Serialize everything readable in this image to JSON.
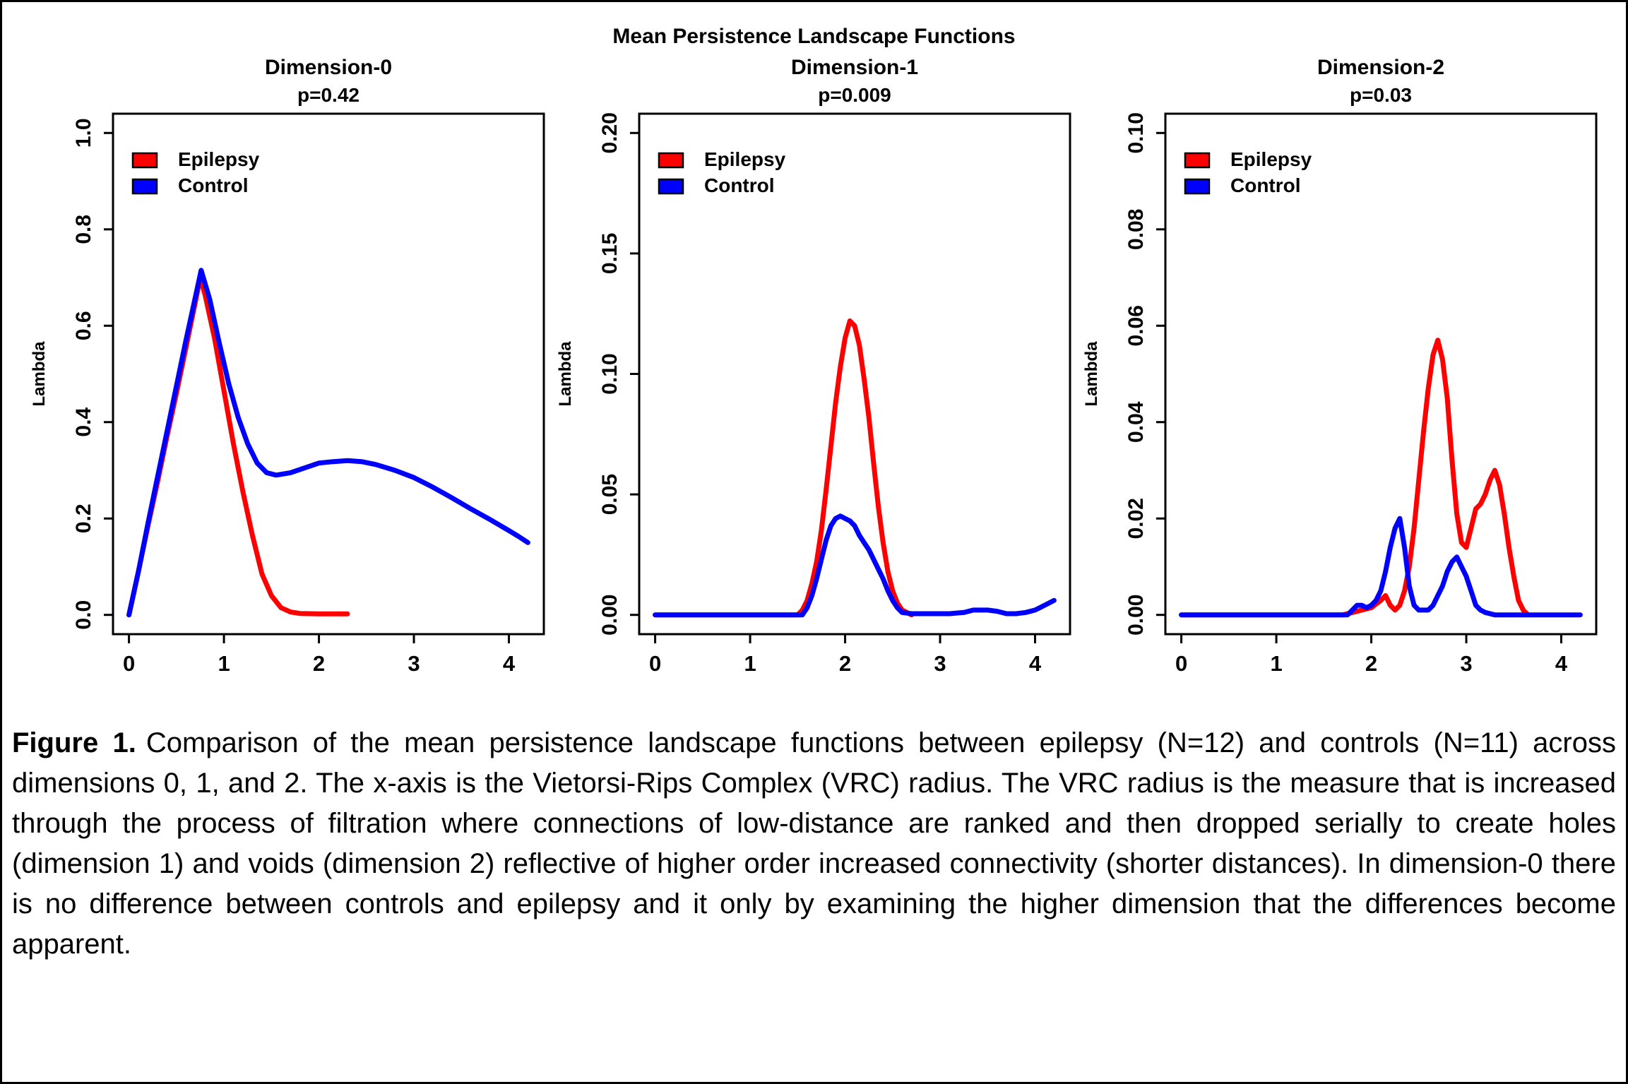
{
  "figure": {
    "main_title": "Mean Persistence Landscape Functions",
    "caption_label": "Figure 1.",
    "caption_text": "Comparison of the mean persistence landscape functions between epilepsy (N=12) and controls (N=11) across dimensions 0, 1, and 2. The x-axis is the Vietorsi-Rips Complex (VRC) radius. The VRC radius is the measure that is increased through the process of filtration where connections of low-distance are ranked and then dropped serially to create holes (dimension 1) and voids (dimension 2) reflective of higher order increased connectivity (shorter distances). In dimension-0 there is no difference between controls and epilepsy and it only by examining the higher dimension that the differences become apparent."
  },
  "colors": {
    "epilepsy": "#FF0000",
    "control": "#0000FF",
    "axis": "#000000",
    "background": "#FFFFFF"
  },
  "legend": {
    "items": [
      "Epilepsy",
      "Control"
    ]
  },
  "chart_data": [
    {
      "type": "line",
      "title": "Dimension-0",
      "p_label": "p=0.42",
      "p_value": 0.42,
      "xlabel": "",
      "ylabel": "Lambda",
      "xlim": [
        0,
        4.2
      ],
      "ylim": [
        0,
        1.0
      ],
      "xticks": [
        "0",
        "1",
        "2",
        "3",
        "4"
      ],
      "yticks": [
        "0.0",
        "0.2",
        "0.4",
        "0.6",
        "0.8",
        "1.0"
      ],
      "grid": false,
      "legend_position": "top-left",
      "series": [
        {
          "name": "Epilepsy",
          "color": "#FF0000",
          "points": [
            [
              0,
              0
            ],
            [
              0.1,
              0.09
            ],
            [
              0.2,
              0.185
            ],
            [
              0.3,
              0.275
            ],
            [
              0.4,
              0.37
            ],
            [
              0.5,
              0.46
            ],
            [
              0.6,
              0.555
            ],
            [
              0.7,
              0.65
            ],
            [
              0.75,
              0.7
            ],
            [
              0.8,
              0.665
            ],
            [
              0.9,
              0.575
            ],
            [
              1.0,
              0.465
            ],
            [
              1.1,
              0.355
            ],
            [
              1.2,
              0.255
            ],
            [
              1.3,
              0.165
            ],
            [
              1.4,
              0.085
            ],
            [
              1.5,
              0.04
            ],
            [
              1.6,
              0.015
            ],
            [
              1.7,
              0.006
            ],
            [
              1.8,
              0.003
            ],
            [
              2.0,
              0.002
            ],
            [
              2.3,
              0.002
            ]
          ]
        },
        {
          "name": "Control",
          "color": "#0000FF",
          "points": [
            [
              0,
              0
            ],
            [
              0.1,
              0.09
            ],
            [
              0.2,
              0.19
            ],
            [
              0.3,
              0.285
            ],
            [
              0.4,
              0.38
            ],
            [
              0.5,
              0.475
            ],
            [
              0.6,
              0.57
            ],
            [
              0.7,
              0.66
            ],
            [
              0.76,
              0.715
            ],
            [
              0.85,
              0.655
            ],
            [
              0.95,
              0.565
            ],
            [
              1.05,
              0.48
            ],
            [
              1.15,
              0.41
            ],
            [
              1.25,
              0.355
            ],
            [
              1.35,
              0.315
            ],
            [
              1.45,
              0.295
            ],
            [
              1.55,
              0.29
            ],
            [
              1.7,
              0.295
            ],
            [
              1.85,
              0.305
            ],
            [
              2.0,
              0.315
            ],
            [
              2.15,
              0.318
            ],
            [
              2.3,
              0.32
            ],
            [
              2.45,
              0.318
            ],
            [
              2.6,
              0.312
            ],
            [
              2.8,
              0.3
            ],
            [
              3.0,
              0.285
            ],
            [
              3.2,
              0.265
            ],
            [
              3.4,
              0.243
            ],
            [
              3.6,
              0.22
            ],
            [
              3.8,
              0.198
            ],
            [
              4.0,
              0.175
            ],
            [
              4.1,
              0.163
            ],
            [
              4.2,
              0.15
            ]
          ]
        }
      ]
    },
    {
      "type": "line",
      "title": "Dimension-1",
      "p_label": "p=0.009",
      "p_value": 0.009,
      "xlabel": "",
      "ylabel": "Lambda",
      "xlim": [
        0,
        4.2
      ],
      "ylim": [
        0,
        0.2
      ],
      "xticks": [
        "0",
        "1",
        "2",
        "3",
        "4"
      ],
      "yticks": [
        "0.00",
        "0.05",
        "0.10",
        "0.15",
        "0.20"
      ],
      "grid": false,
      "legend_position": "top-left",
      "series": [
        {
          "name": "Epilepsy",
          "color": "#FF0000",
          "points": [
            [
              0,
              0
            ],
            [
              1.5,
              0
            ],
            [
              1.55,
              0.002
            ],
            [
              1.6,
              0.006
            ],
            [
              1.65,
              0.013
            ],
            [
              1.7,
              0.022
            ],
            [
              1.75,
              0.035
            ],
            [
              1.8,
              0.052
            ],
            [
              1.85,
              0.07
            ],
            [
              1.9,
              0.088
            ],
            [
              1.95,
              0.103
            ],
            [
              2.0,
              0.115
            ],
            [
              2.05,
              0.122
            ],
            [
              2.1,
              0.12
            ],
            [
              2.15,
              0.112
            ],
            [
              2.2,
              0.098
            ],
            [
              2.25,
              0.082
            ],
            [
              2.3,
              0.063
            ],
            [
              2.35,
              0.045
            ],
            [
              2.4,
              0.03
            ],
            [
              2.45,
              0.018
            ],
            [
              2.5,
              0.01
            ],
            [
              2.55,
              0.005
            ],
            [
              2.6,
              0.002
            ],
            [
              2.65,
              0.001
            ],
            [
              2.7,
              0
            ]
          ]
        },
        {
          "name": "Control",
          "color": "#0000FF",
          "points": [
            [
              0,
              0
            ],
            [
              1.55,
              0
            ],
            [
              1.6,
              0.003
            ],
            [
              1.65,
              0.008
            ],
            [
              1.7,
              0.015
            ],
            [
              1.75,
              0.023
            ],
            [
              1.8,
              0.031
            ],
            [
              1.85,
              0.037
            ],
            [
              1.9,
              0.04
            ],
            [
              1.95,
              0.041
            ],
            [
              2.0,
              0.04
            ],
            [
              2.05,
              0.039
            ],
            [
              2.1,
              0.037
            ],
            [
              2.15,
              0.033
            ],
            [
              2.2,
              0.03
            ],
            [
              2.25,
              0.027
            ],
            [
              2.3,
              0.023
            ],
            [
              2.35,
              0.019
            ],
            [
              2.4,
              0.015
            ],
            [
              2.45,
              0.01
            ],
            [
              2.5,
              0.006
            ],
            [
              2.55,
              0.003
            ],
            [
              2.6,
              0.001
            ],
            [
              2.7,
              0.0005
            ],
            [
              2.9,
              0.0005
            ],
            [
              3.1,
              0.0005
            ],
            [
              3.25,
              0.001
            ],
            [
              3.35,
              0.002
            ],
            [
              3.5,
              0.002
            ],
            [
              3.6,
              0.0015
            ],
            [
              3.7,
              0.0005
            ],
            [
              3.8,
              0.0005
            ],
            [
              3.9,
              0.001
            ],
            [
              4.0,
              0.002
            ],
            [
              4.1,
              0.004
            ],
            [
              4.2,
              0.006
            ]
          ]
        }
      ]
    },
    {
      "type": "line",
      "title": "Dimension-2",
      "p_label": "p=0.03",
      "p_value": 0.03,
      "xlabel": "",
      "ylabel": "Lambda",
      "xlim": [
        0,
        4.2
      ],
      "ylim": [
        0,
        0.1
      ],
      "xticks": [
        "0",
        "1",
        "2",
        "3",
        "4"
      ],
      "yticks": [
        "0.00",
        "0.02",
        "0.04",
        "0.06",
        "0.08",
        "0.10"
      ],
      "grid": false,
      "legend_position": "top-left",
      "series": [
        {
          "name": "Epilepsy",
          "color": "#FF0000",
          "points": [
            [
              0,
              0
            ],
            [
              1.7,
              0
            ],
            [
              1.8,
              0.0005
            ],
            [
              1.9,
              0.001
            ],
            [
              2.0,
              0.0015
            ],
            [
              2.1,
              0.003
            ],
            [
              2.15,
              0.004
            ],
            [
              2.2,
              0.002
            ],
            [
              2.25,
              0.001
            ],
            [
              2.3,
              0.002
            ],
            [
              2.35,
              0.005
            ],
            [
              2.4,
              0.01
            ],
            [
              2.45,
              0.018
            ],
            [
              2.5,
              0.028
            ],
            [
              2.55,
              0.038
            ],
            [
              2.6,
              0.047
            ],
            [
              2.65,
              0.054
            ],
            [
              2.7,
              0.057
            ],
            [
              2.75,
              0.053
            ],
            [
              2.8,
              0.045
            ],
            [
              2.85,
              0.032
            ],
            [
              2.9,
              0.021
            ],
            [
              2.95,
              0.015
            ],
            [
              3.0,
              0.014
            ],
            [
              3.05,
              0.018
            ],
            [
              3.1,
              0.022
            ],
            [
              3.15,
              0.023
            ],
            [
              3.2,
              0.025
            ],
            [
              3.25,
              0.028
            ],
            [
              3.3,
              0.03
            ],
            [
              3.35,
              0.027
            ],
            [
              3.4,
              0.021
            ],
            [
              3.45,
              0.014
            ],
            [
              3.5,
              0.008
            ],
            [
              3.55,
              0.003
            ],
            [
              3.6,
              0.001
            ],
            [
              3.65,
              0
            ]
          ]
        },
        {
          "name": "Control",
          "color": "#0000FF",
          "points": [
            [
              0,
              0
            ],
            [
              1.75,
              0
            ],
            [
              1.8,
              0.001
            ],
            [
              1.85,
              0.002
            ],
            [
              1.9,
              0.002
            ],
            [
              1.95,
              0.0015
            ],
            [
              2.0,
              0.002
            ],
            [
              2.05,
              0.003
            ],
            [
              2.1,
              0.005
            ],
            [
              2.15,
              0.009
            ],
            [
              2.2,
              0.014
            ],
            [
              2.25,
              0.018
            ],
            [
              2.3,
              0.02
            ],
            [
              2.35,
              0.014
            ],
            [
              2.4,
              0.006
            ],
            [
              2.45,
              0.002
            ],
            [
              2.5,
              0.001
            ],
            [
              2.55,
              0.001
            ],
            [
              2.6,
              0.001
            ],
            [
              2.65,
              0.002
            ],
            [
              2.7,
              0.004
            ],
            [
              2.75,
              0.006
            ],
            [
              2.8,
              0.009
            ],
            [
              2.85,
              0.011
            ],
            [
              2.9,
              0.012
            ],
            [
              2.95,
              0.01
            ],
            [
              3.0,
              0.008
            ],
            [
              3.05,
              0.005
            ],
            [
              3.1,
              0.002
            ],
            [
              3.15,
              0.001
            ],
            [
              3.2,
              0.0005
            ],
            [
              3.3,
              0
            ],
            [
              4.2,
              0
            ]
          ]
        }
      ]
    }
  ]
}
